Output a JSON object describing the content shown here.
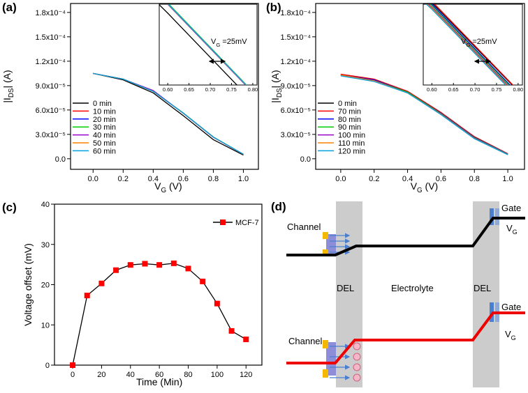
{
  "chart_data": [
    {
      "type": "line",
      "panel_label": "(a)",
      "x_label": [
        "V",
        "G",
        " (V)"
      ],
      "y_label": [
        "|I",
        "DS",
        "| (A)"
      ],
      "x": [
        0,
        0.2,
        0.4,
        0.6,
        0.8,
        1.0
      ],
      "xlim": [
        -0.15,
        1.1
      ],
      "ylim": [
        -1.3e-05,
        0.000191
      ],
      "xticks": [
        {
          "value": 0,
          "label": "0.0"
        },
        {
          "value": 0.2,
          "label": "0.2"
        },
        {
          "value": 0.4,
          "label": "0.4"
        },
        {
          "value": 0.6,
          "label": "0.6"
        },
        {
          "value": 0.8,
          "label": "0.8"
        },
        {
          "value": 1.0,
          "label": "1.0"
        }
      ],
      "yticks": [
        {
          "value": 0,
          "label": "0.0"
        },
        {
          "value": 3e-05,
          "label": "3.0x10⁻⁵"
        },
        {
          "value": 6e-05,
          "label": "6.0x10⁻⁵"
        },
        {
          "value": 9e-05,
          "label": "9.0x10⁻⁵"
        },
        {
          "value": 0.00012,
          "label": "1.2x10⁻⁴"
        },
        {
          "value": 0.00015,
          "label": "1.5x10⁻⁴"
        },
        {
          "value": 0.00018,
          "label": "1.8x10⁻⁴"
        }
      ],
      "legend": "center left",
      "series": [
        {
          "name": "0 min",
          "color": "#000000",
          "values": [
            0.000105,
            9.7e-05,
            8.1e-05,
            5.3e-05,
            2.35e-05,
            4.5e-06
          ]
        },
        {
          "name": "10 min",
          "color": "#ff0000",
          "values": [
            0.000105,
            9.8e-05,
            8.3e-05,
            5.62e-05,
            2.67e-05,
            5.5e-06
          ]
        },
        {
          "name": "20 min",
          "color": "#0000ff",
          "values": [
            0.000105,
            9.8e-05,
            8.3e-05,
            5.6e-05,
            2.65e-05,
            5.5e-06
          ]
        },
        {
          "name": "30 min",
          "color": "#00cc00",
          "values": [
            0.000105,
            9.8e-05,
            8.3e-05,
            5.64e-05,
            2.68e-05,
            5.6e-06
          ]
        },
        {
          "name": "40 min",
          "color": "#9900cc",
          "values": [
            0.000105,
            9.8e-05,
            8.4e-05,
            5.6e-05,
            2.65e-05,
            5.5e-06
          ]
        },
        {
          "name": "50 min",
          "color": "#ff8000",
          "values": [
            0.000105,
            9.8e-05,
            8.3e-05,
            5.61e-05,
            2.66e-05,
            5.5e-06
          ]
        },
        {
          "name": "60 min",
          "color": "#00a0e0",
          "values": [
            0.000105,
            9.8e-05,
            8.3e-05,
            5.62e-05,
            2.67e-05,
            5.6e-06
          ]
        }
      ],
      "inset": {
        "xlim": [
          0.58,
          0.81
        ],
        "ylim": [
          2.9e-05,
          5.6e-05
        ],
        "xticks": [
          {
            "value": 0.6,
            "label": "0.60"
          },
          {
            "value": 0.65,
            "label": "0.65"
          },
          {
            "value": 0.7,
            "label": "0.70"
          },
          {
            "value": 0.75,
            "label": "0.75"
          },
          {
            "value": 0.8,
            "label": "0.80"
          }
        ],
        "annotation": [
          "V",
          "G",
          " =25mV"
        ]
      }
    },
    {
      "type": "line",
      "panel_label": "(b)",
      "x_label": [
        "V",
        "G",
        " (V)"
      ],
      "y_label": [
        "|I",
        "DS",
        "| (A)"
      ],
      "x": [
        0,
        0.2,
        0.4,
        0.6,
        0.8,
        1.0
      ],
      "xlim": [
        -0.15,
        1.1
      ],
      "ylim": [
        -1.3e-05,
        0.000191
      ],
      "xticks": [
        {
          "value": 0,
          "label": "0.0"
        },
        {
          "value": 0.2,
          "label": "0.2"
        },
        {
          "value": 0.4,
          "label": "0.4"
        },
        {
          "value": 0.6,
          "label": "0.6"
        },
        {
          "value": 0.8,
          "label": "0.8"
        },
        {
          "value": 1.0,
          "label": "1.0"
        }
      ],
      "yticks": [
        {
          "value": 0,
          "label": "0.0"
        },
        {
          "value": 3e-05,
          "label": "3.0x10⁻⁵"
        },
        {
          "value": 6e-05,
          "label": "6.0x10⁻⁵"
        },
        {
          "value": 9e-05,
          "label": "9.0x10⁻⁵"
        },
        {
          "value": 0.00012,
          "label": "1.2x10⁻⁴"
        },
        {
          "value": 0.00015,
          "label": "1.5x10⁻⁴"
        },
        {
          "value": 0.00018,
          "label": "1.8x10⁻⁴"
        }
      ],
      "legend": "center left",
      "series": [
        {
          "name": "0 min",
          "color": "#000000",
          "values": [
            0.000104,
            9.7e-05,
            8.2e-05,
            5.65e-05,
            2.7e-05,
            6e-06
          ]
        },
        {
          "name": "70 min",
          "color": "#ff0000",
          "values": [
            0.000104,
            9.8e-05,
            8.3e-05,
            5.7e-05,
            2.72e-05,
            6.2e-06
          ]
        },
        {
          "name": "80 min",
          "color": "#0000ff",
          "values": [
            0.000103,
            9.7e-05,
            8.2e-05,
            5.6e-05,
            2.62e-05,
            5.8e-06
          ]
        },
        {
          "name": "90 min",
          "color": "#00cc00",
          "values": [
            0.000103,
            9.6e-05,
            8.2e-05,
            5.55e-05,
            2.58e-05,
            5.6e-06
          ]
        },
        {
          "name": "100 min",
          "color": "#9900cc",
          "values": [
            0.000103,
            9.6e-05,
            8.1e-05,
            5.5e-05,
            2.53e-05,
            5.4e-06
          ]
        },
        {
          "name": "110 min",
          "color": "#ff8000",
          "values": [
            0.000103,
            9.6e-05,
            8.1e-05,
            5.47e-05,
            2.5e-05,
            5.2e-06
          ]
        },
        {
          "name": "120 min",
          "color": "#00a0e0",
          "values": [
            0.000102,
            9.5e-05,
            8.1e-05,
            5.43e-05,
            2.47e-05,
            5e-06
          ]
        }
      ],
      "inset": {
        "xlim": [
          0.58,
          0.81
        ],
        "ylim": [
          2.9e-05,
          5.6e-05
        ],
        "xticks": [
          {
            "value": 0.6,
            "label": "0.60"
          },
          {
            "value": 0.65,
            "label": "0.65"
          },
          {
            "value": 0.7,
            "label": "0.70"
          },
          {
            "value": 0.75,
            "label": "0.75"
          },
          {
            "value": 0.8,
            "label": "0.80"
          }
        ],
        "annotation": [
          "V",
          "G",
          " =25mV"
        ]
      }
    },
    {
      "type": "line",
      "panel_label": "(c)",
      "x_label": [
        "Time (Min)"
      ],
      "y_label": [
        "Voltage offset (mV)"
      ],
      "x": [
        0,
        10,
        20,
        30,
        40,
        50,
        60,
        70,
        80,
        90,
        100,
        110,
        120
      ],
      "xlim": [
        -12.6,
        131
      ],
      "ylim": [
        0,
        40
      ],
      "xticks": [
        0,
        20,
        40,
        60,
        80,
        100,
        120
      ],
      "yticks": [
        0,
        10,
        20,
        30,
        40
      ],
      "legend": "upper right",
      "markers": true,
      "series": [
        {
          "name": "MCF-7",
          "color": "#ff0000",
          "line_color": "#000000",
          "values": [
            0,
            17.3,
            20.3,
            23.6,
            24.9,
            25.2,
            24.9,
            25.3,
            24.0,
            20.8,
            15.3,
            8.5,
            6.4
          ]
        }
      ]
    }
  ],
  "diagram": {
    "panel_label": "(d)",
    "top": {
      "channel": "Channel",
      "gate": "Gate",
      "vg": [
        "V",
        "G"
      ]
    },
    "middle": {
      "del_left": "DEL",
      "electrolyte": "Electrolyte",
      "del_right": "DEL"
    },
    "bottom": {
      "channel": "Channel",
      "gate": "Gate",
      "vg": [
        "V",
        "G"
      ]
    }
  }
}
